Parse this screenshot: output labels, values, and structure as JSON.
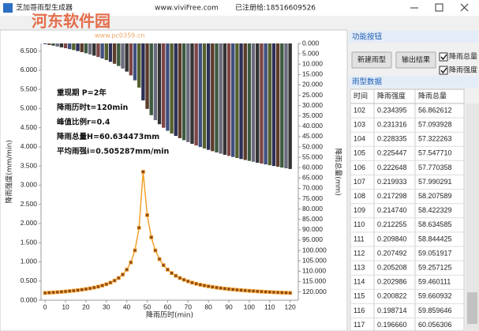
{
  "window": {
    "title": "芝加哥雨型生成器",
    "url": "www.viviFree.com",
    "registration": "已注册给:18516609526"
  },
  "watermark": {
    "text": "河东软件园",
    "url": "www.pc0359.cn"
  },
  "chart_data": {
    "type": "combo",
    "xlabel": "降雨历时(min)",
    "ylabel": "降雨强度(mm/min)",
    "y2label": "降雨总量(mm)",
    "annotations": [
      "重现期  P=2年",
      "降雨历时t=120min",
      "峰值比例r=0.4",
      "降雨总量H=60.634473mm",
      "平均雨强i=0.505287mm/min"
    ],
    "x": [
      0,
      2,
      4,
      6,
      8,
      10,
      12,
      14,
      16,
      18,
      20,
      22,
      24,
      26,
      28,
      30,
      32,
      34,
      36,
      38,
      40,
      42,
      44,
      46,
      48,
      50,
      52,
      54,
      56,
      58,
      60,
      62,
      64,
      66,
      68,
      70,
      72,
      74,
      76,
      78,
      80,
      82,
      84,
      86,
      88,
      90,
      92,
      94,
      96,
      98,
      100,
      102,
      104,
      106,
      108,
      110,
      112,
      114,
      116,
      118,
      120
    ],
    "xlim": [
      -2,
      124
    ],
    "xticks": [
      0,
      10,
      20,
      30,
      40,
      50,
      60,
      70,
      80,
      90,
      100,
      110,
      120
    ],
    "ylim": [
      0,
      6.7
    ],
    "yticks": [
      {
        "value": 0,
        "label": "0.000"
      },
      {
        "value": 0.5,
        "label": "0.500"
      },
      {
        "value": 1,
        "label": "1.000"
      },
      {
        "value": 1.5,
        "label": "1.500"
      },
      {
        "value": 2,
        "label": "2.000"
      },
      {
        "value": 2.5,
        "label": "2.500"
      },
      {
        "value": 3,
        "label": "3.000"
      },
      {
        "value": 3.5,
        "label": "3.500"
      },
      {
        "value": 4,
        "label": "4.000"
      },
      {
        "value": 4.5,
        "label": "4.500"
      },
      {
        "value": 5,
        "label": "5.000"
      },
      {
        "value": 5.5,
        "label": "5.500"
      },
      {
        "value": 6,
        "label": "6.000"
      },
      {
        "value": 6.5,
        "label": "6.500"
      }
    ],
    "y2lim": [
      0,
      124
    ],
    "y2_reversed": true,
    "y2ticks": [
      {
        "value": 0,
        "label": "0.000"
      },
      {
        "value": 5,
        "label": "5.000"
      },
      {
        "value": 10,
        "label": "10.000"
      },
      {
        "value": 15,
        "label": "15.000"
      },
      {
        "value": 20,
        "label": "20.000"
      },
      {
        "value": 25,
        "label": "25.000"
      },
      {
        "value": 30,
        "label": "30.000"
      },
      {
        "value": 35,
        "label": "35.000"
      },
      {
        "value": 40,
        "label": "40.000"
      },
      {
        "value": 45,
        "label": "45.000"
      },
      {
        "value": 50,
        "label": "50.000"
      },
      {
        "value": 55,
        "label": "55.000"
      },
      {
        "value": 60,
        "label": "60.000"
      },
      {
        "value": 65,
        "label": "65.000"
      },
      {
        "value": 70,
        "label": "70.000"
      },
      {
        "value": 75,
        "label": "75.000"
      },
      {
        "value": 80,
        "label": "80.000"
      },
      {
        "value": 85,
        "label": "85.000"
      },
      {
        "value": 90,
        "label": "90.000"
      },
      {
        "value": 95,
        "label": "95.000"
      },
      {
        "value": 100,
        "label": "100.000"
      },
      {
        "value": 105,
        "label": "105.000"
      },
      {
        "value": 110,
        "label": "110.000"
      },
      {
        "value": 115,
        "label": "115.000"
      },
      {
        "value": 120,
        "label": "120.000"
      }
    ],
    "series": [
      {
        "name": "降雨总量",
        "type": "bar",
        "axis": "y2",
        "colors": [
          "#2c2f55",
          "#5b3b2b",
          "#3d5a40",
          "#6b6b7d",
          "#333333",
          "#7d4545",
          "#3f4f80",
          "#55602e"
        ],
        "values": [
          0.349,
          0.711,
          1.085,
          1.473,
          1.876,
          2.295,
          2.735,
          3.193,
          3.676,
          4.184,
          4.72,
          5.289,
          5.897,
          6.549,
          7.255,
          8.024,
          8.87,
          9.815,
          10.885,
          12.121,
          13.594,
          15.416,
          17.817,
          21.309,
          27.5,
          31.604,
          34.637,
          37.038,
          39.019,
          40.706,
          42.179,
          43.485,
          44.662,
          45.733,
          46.717,
          47.629,
          48.475,
          49.268,
          50.014,
          50.72,
          51.389,
          52.027,
          52.635,
          53.217,
          53.775,
          54.311,
          54.828,
          55.327,
          55.81,
          56.275,
          56.728,
          57.168,
          57.595,
          58.009,
          58.412,
          58.805,
          59.188,
          59.561,
          59.927,
          60.285,
          60.635
        ]
      },
      {
        "name": "降雨强度",
        "type": "line",
        "color": "#f5a028",
        "marker_color": "#8b4a1c",
        "values": [
          0.189,
          0.196,
          0.202,
          0.21,
          0.218,
          0.227,
          0.238,
          0.248,
          0.261,
          0.275,
          0.29,
          0.308,
          0.329,
          0.353,
          0.382,
          0.416,
          0.458,
          0.511,
          0.579,
          0.669,
          0.797,
          0.986,
          1.299,
          1.89,
          3.35,
          2.221,
          1.641,
          1.299,
          1.072,
          0.913,
          0.797,
          0.707,
          0.637,
          0.579,
          0.533,
          0.493,
          0.458,
          0.429,
          0.404,
          0.382,
          0.362,
          0.345,
          0.329,
          0.315,
          0.302,
          0.29,
          0.28,
          0.27,
          0.261,
          0.252,
          0.245,
          0.238,
          0.231,
          0.224,
          0.218,
          0.213,
          0.207,
          0.202,
          0.198,
          0.194,
          0.189
        ]
      }
    ]
  },
  "panel": {
    "buttons_title": "功能按钮",
    "buttons": [
      "新建雨型",
      "输出结果"
    ],
    "checkboxes": [
      {
        "label": "降雨总量",
        "checked": true
      },
      {
        "label": "降雨强度",
        "checked": true
      }
    ],
    "table_title": "雨型数据",
    "table": {
      "columns": [
        "时间",
        "降雨强度",
        "降雨总量"
      ],
      "rows": [
        [
          "102",
          "0.234395",
          "56.862612"
        ],
        [
          "103",
          "0.231316",
          "57.093928"
        ],
        [
          "104",
          "0.228335",
          "57.322263"
        ],
        [
          "105",
          "0.225447",
          "57.547710"
        ],
        [
          "106",
          "0.222648",
          "57.770358"
        ],
        [
          "107",
          "0.219933",
          "57.990291"
        ],
        [
          "108",
          "0.217298",
          "58.207589"
        ],
        [
          "109",
          "0.214740",
          "58.422329"
        ],
        [
          "110",
          "0.212255",
          "58.634585"
        ],
        [
          "111",
          "0.209840",
          "58.844425"
        ],
        [
          "112",
          "0.207492",
          "59.051917"
        ],
        [
          "113",
          "0.205208",
          "59.257125"
        ],
        [
          "114",
          "0.202986",
          "59.460111"
        ],
        [
          "115",
          "0.200822",
          "59.660932"
        ],
        [
          "116",
          "0.198714",
          "59.859646"
        ],
        [
          "117",
          "0.196660",
          "60.056306"
        ]
      ]
    }
  }
}
